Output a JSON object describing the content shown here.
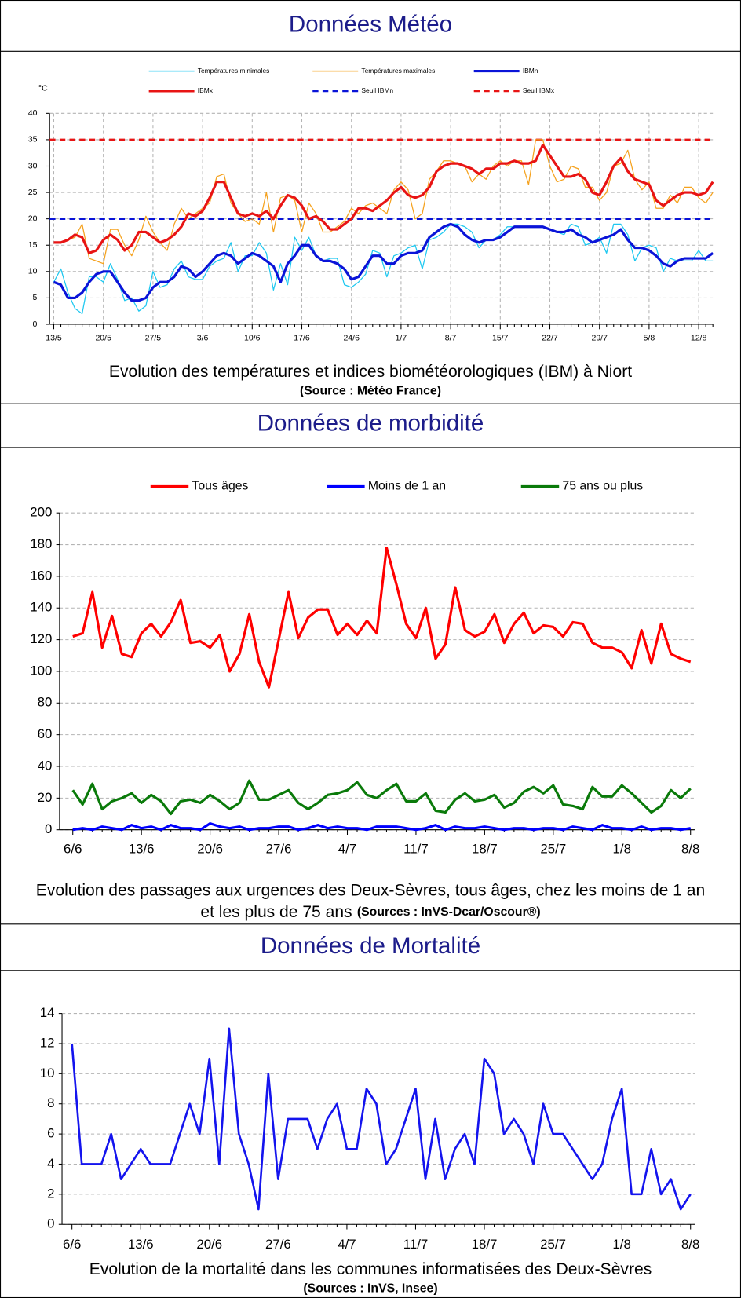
{
  "sections": [
    {
      "heading": "Données Météo"
    },
    {
      "heading": "Données de morbidité"
    },
    {
      "heading": "Données de Mortalité"
    }
  ],
  "chart_data": [
    {
      "type": "line",
      "caption": [
        "Evolution des températures et indices biométéorologiques (IBM) à Niort"
      ],
      "source": "(Source : Météo France)",
      "y_unit": "°C",
      "categories": [
        "13/5",
        null,
        null,
        null,
        null,
        null,
        null,
        "20/5",
        null,
        null,
        null,
        null,
        null,
        null,
        "27/5",
        null,
        null,
        null,
        null,
        null,
        null,
        "3/6",
        null,
        null,
        null,
        null,
        null,
        null,
        "10/6",
        null,
        null,
        null,
        null,
        null,
        null,
        "17/6",
        null,
        null,
        null,
        null,
        null,
        null,
        "24/6",
        null,
        null,
        null,
        null,
        null,
        null,
        "1/7",
        null,
        null,
        null,
        null,
        null,
        null,
        "8/7",
        null,
        null,
        null,
        null,
        null,
        null,
        "15/7",
        null,
        null,
        null,
        null,
        null,
        null,
        "22/7",
        null,
        null,
        null,
        null,
        null,
        null,
        "29/7",
        null,
        null,
        null,
        null,
        null,
        null,
        "5/8",
        null,
        null,
        null,
        null,
        null,
        null,
        "12/8",
        null,
        null
      ],
      "ylim": [
        0,
        40
      ],
      "yticks": [
        0,
        5,
        10,
        15,
        20,
        25,
        30,
        35,
        40
      ],
      "grid": true,
      "vertical_grid": true,
      "series": [
        {
          "name": "Températures minimales",
          "color": "#1ec8f0",
          "width": 1.2,
          "values": [
            8,
            10.5,
            6,
            3,
            2,
            9,
            9,
            8,
            11.5,
            8.5,
            4.5,
            5,
            2.5,
            3.5,
            10,
            7,
            7.5,
            10.5,
            12,
            9,
            8.5,
            8.5,
            11,
            12,
            12.5,
            15.5,
            10,
            13,
            13,
            15.5,
            13.5,
            6.5,
            11.5,
            7.5,
            16.5,
            14,
            16.5,
            13,
            12,
            12.5,
            12.5,
            7.5,
            7,
            8,
            9.5,
            14,
            13.5,
            9,
            13,
            13.5,
            14.5,
            15,
            10.5,
            16,
            16.5,
            17.5,
            19,
            19,
            18.5,
            17.5,
            14.5,
            16,
            16,
            17,
            18.5,
            18.5,
            18.5,
            18.5,
            18.5,
            18.5,
            18,
            17.5,
            17,
            19,
            18.5,
            15,
            15.5,
            16.5,
            13.5,
            19,
            19,
            17,
            12,
            14.5,
            15,
            14.5,
            10,
            12.5,
            12,
            12,
            12,
            14,
            12,
            12
          ]
        },
        {
          "name": "Températures maximales",
          "color": "#f5a21e",
          "width": 1.2,
          "values": [
            15.5,
            15.5,
            16,
            16.5,
            19,
            12.5,
            12,
            11.5,
            18,
            18,
            15,
            13,
            16,
            20.5,
            17.5,
            15.5,
            14,
            19,
            22,
            20,
            21,
            22,
            23,
            28,
            28.5,
            23,
            21,
            19.5,
            20,
            19,
            25,
            17.5,
            24,
            24.5,
            23.5,
            17.5,
            23,
            21,
            17.5,
            17.5,
            18.5,
            19.5,
            22,
            21,
            22.5,
            23,
            22,
            21,
            25.5,
            27,
            25.5,
            20,
            21,
            27.5,
            29,
            31,
            31,
            30.5,
            30,
            27,
            28.5,
            27.5,
            30,
            31,
            30,
            31,
            31,
            26.5,
            35,
            35,
            30,
            27,
            27.5,
            30,
            29.5,
            26,
            26,
            23.5,
            25,
            30,
            30.5,
            33,
            27.5,
            25.5,
            27,
            22,
            22,
            24.5,
            23,
            26,
            26,
            24,
            23,
            25
          ]
        },
        {
          "name": "IBMn",
          "color": "#0a14d8",
          "width": 3,
          "values": [
            8,
            7.5,
            5,
            5,
            6,
            8,
            9.5,
            10,
            10,
            8,
            6,
            4.5,
            4.5,
            5,
            7,
            8,
            8,
            9,
            11,
            10.5,
            9,
            10,
            11.5,
            13,
            13.5,
            13,
            11.5,
            12.5,
            13.5,
            13,
            12,
            11,
            8,
            11.5,
            13,
            15,
            15,
            13,
            12,
            12,
            11.5,
            10.5,
            8.5,
            9,
            11,
            13,
            13,
            11.5,
            11.5,
            13,
            13.5,
            13.5,
            14,
            16.5,
            17.5,
            18.5,
            19,
            18.5,
            17,
            16,
            15.5,
            16,
            16,
            16.5,
            17.5,
            18.5,
            18.5,
            18.5,
            18.5,
            18.5,
            18,
            17.5,
            17.5,
            18,
            17,
            16.5,
            15.5,
            16,
            16.5,
            17,
            18,
            16,
            14.5,
            14.5,
            14,
            13,
            11.5,
            11,
            12,
            12.5,
            12.5,
            12.5,
            12.5,
            13.5
          ]
        },
        {
          "name": "IBMx",
          "color": "#e81414",
          "width": 3,
          "values": [
            15.5,
            15.5,
            16,
            17,
            16.5,
            13.5,
            14,
            16,
            17,
            16,
            14,
            15,
            17.5,
            17.5,
            16.5,
            15.5,
            16,
            17,
            18.5,
            21,
            20.5,
            21.5,
            24,
            27,
            27,
            24,
            21,
            20.5,
            21,
            20.5,
            21.5,
            20,
            22.5,
            24.5,
            24,
            22.5,
            20,
            20.5,
            19.5,
            18,
            18,
            19,
            20,
            22,
            22,
            21.5,
            22.5,
            23.5,
            25,
            26,
            24.5,
            24,
            24.5,
            26,
            29,
            30,
            30.5,
            30.5,
            30,
            29.5,
            28.5,
            29.5,
            29.5,
            30.5,
            30.5,
            31,
            30.5,
            30.5,
            31,
            34,
            32,
            30,
            28,
            28,
            28.5,
            27.5,
            25,
            24.5,
            27,
            30,
            31.5,
            29,
            27.5,
            27,
            26.5,
            23.5,
            22.5,
            23.5,
            24.5,
            25,
            25,
            24.5,
            25,
            27
          ]
        }
      ],
      "thresholds": [
        {
          "name": "Seuil IBMn",
          "color": "#0a14d8",
          "value": 20,
          "dash": true
        },
        {
          "name": "Seuil IBMx",
          "color": "#e81414",
          "value": 35,
          "dash": true
        }
      ]
    },
    {
      "type": "line",
      "caption": [
        "Evolution des passages aux urgences des Deux-Sèvres, tous âges, chez les moins de 1 an",
        "et les plus de 75 ans"
      ],
      "source": "(Sources : InVS-Dcar/Oscour®)",
      "categories": [
        "6/6",
        null,
        null,
        null,
        null,
        null,
        null,
        "13/6",
        null,
        null,
        null,
        null,
        null,
        null,
        "20/6",
        null,
        null,
        null,
        null,
        null,
        null,
        "27/6",
        null,
        null,
        null,
        null,
        null,
        null,
        "4/7",
        null,
        null,
        null,
        null,
        null,
        null,
        "11/7",
        null,
        null,
        null,
        null,
        null,
        null,
        "18/7",
        null,
        null,
        null,
        null,
        null,
        null,
        "25/7",
        null,
        null,
        null,
        null,
        null,
        null,
        "1/8",
        null,
        null,
        null,
        null,
        null,
        null,
        "8/8"
      ],
      "ylim": [
        0,
        200
      ],
      "yticks": [
        0,
        20,
        40,
        60,
        80,
        100,
        120,
        140,
        160,
        180,
        200
      ],
      "grid": true,
      "vertical_grid": false,
      "series": [
        {
          "name": "Tous âges",
          "color": "#ff0000",
          "width": 3,
          "values": [
            122,
            124,
            150,
            115,
            135,
            111,
            109,
            124,
            130,
            122,
            131,
            145,
            118,
            119,
            115,
            123,
            100,
            111,
            136,
            106,
            90,
            120,
            150,
            121,
            134,
            139,
            139,
            123,
            130,
            123,
            132,
            124,
            178,
            155,
            130,
            121,
            140,
            108,
            117,
            153,
            126,
            122,
            125,
            136,
            118,
            130,
            137,
            124,
            129,
            128,
            122,
            131,
            130,
            118,
            115,
            115,
            112,
            102,
            126,
            105,
            130,
            111,
            108,
            106
          ]
        },
        {
          "name": "Moins de 1 an",
          "color": "#0000ff",
          "width": 3,
          "values": [
            0,
            1,
            0,
            2,
            1,
            0,
            3,
            1,
            2,
            0,
            3,
            1,
            1,
            0,
            4,
            2,
            1,
            2,
            0,
            1,
            1,
            2,
            2,
            0,
            1,
            3,
            1,
            2,
            1,
            1,
            0,
            2,
            2,
            2,
            1,
            0,
            1,
            3,
            0,
            2,
            1,
            1,
            2,
            1,
            0,
            1,
            1,
            0,
            1,
            1,
            0,
            2,
            1,
            0,
            3,
            1,
            1,
            0,
            2,
            0,
            1,
            1,
            0,
            1
          ]
        },
        {
          "name": "75 ans ou plus",
          "color": "#0a7a0a",
          "width": 3,
          "values": [
            25,
            16,
            29,
            13,
            18,
            20,
            23,
            17,
            22,
            18,
            10,
            18,
            19,
            17,
            22,
            18,
            13,
            17,
            31,
            19,
            19,
            22,
            25,
            17,
            13,
            17,
            22,
            23,
            25,
            30,
            22,
            20,
            25,
            29,
            18,
            18,
            23,
            12,
            11,
            19,
            23,
            18,
            19,
            22,
            14,
            17,
            24,
            27,
            23,
            28,
            16,
            15,
            13,
            27,
            21,
            21,
            28,
            23,
            17,
            11,
            15,
            25,
            20,
            26
          ]
        }
      ]
    },
    {
      "type": "line",
      "caption": [
        "Evolution de la mortalité dans les communes informatisées des Deux-Sèvres"
      ],
      "source": "(Sources : InVS, Insee)",
      "categories": [
        "6/6",
        null,
        null,
        null,
        null,
        null,
        null,
        "13/6",
        null,
        null,
        null,
        null,
        null,
        null,
        "20/6",
        null,
        null,
        null,
        null,
        null,
        null,
        "27/6",
        null,
        null,
        null,
        null,
        null,
        null,
        "4/7",
        null,
        null,
        null,
        null,
        null,
        null,
        "11/7",
        null,
        null,
        null,
        null,
        null,
        null,
        "18/7",
        null,
        null,
        null,
        null,
        null,
        null,
        "25/7",
        null,
        null,
        null,
        null,
        null,
        null,
        "1/8",
        null,
        null,
        null,
        null,
        null,
        null,
        "8/8"
      ],
      "ylim": [
        0,
        14
      ],
      "yticks": [
        0,
        2,
        4,
        6,
        8,
        10,
        12,
        14
      ],
      "grid": true,
      "vertical_grid": false,
      "color": "#1414ee",
      "width": 2.5,
      "values": [
        12,
        4,
        4,
        4,
        6,
        3,
        4,
        5,
        4,
        4,
        4,
        6,
        8,
        6,
        11,
        4,
        13,
        6,
        4,
        1,
        10,
        3,
        7,
        7,
        7,
        5,
        7,
        8,
        5,
        5,
        9,
        8,
        4,
        5,
        7,
        9,
        3,
        7,
        3,
        5,
        6,
        4,
        11,
        10,
        6,
        7,
        6,
        4,
        8,
        6,
        6,
        5,
        4,
        3,
        4,
        7,
        9,
        2,
        2,
        5,
        2,
        3,
        1,
        2
      ]
    }
  ]
}
